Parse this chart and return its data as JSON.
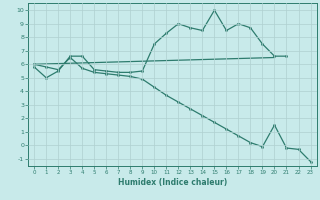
{
  "xlabel": "Humidex (Indice chaleur)",
  "xlim": [
    -0.5,
    23.5
  ],
  "ylim": [
    -1.5,
    10.5
  ],
  "bg_color": "#c8eaea",
  "line_color": "#2e7c6e",
  "grid_color": "#afd0d0",
  "line1_x": [
    0,
    1,
    2,
    3,
    4,
    5,
    6,
    7,
    8,
    9,
    10,
    11,
    12,
    13,
    14,
    15,
    16,
    17,
    18,
    19,
    20,
    21
  ],
  "line1_y": [
    5.8,
    5.0,
    5.5,
    6.6,
    6.6,
    5.6,
    5.5,
    5.4,
    5.4,
    5.5,
    7.5,
    8.3,
    9.0,
    8.7,
    8.5,
    10.0,
    8.5,
    9.0,
    8.7,
    7.5,
    6.6,
    6.6
  ],
  "line2_x": [
    0,
    20
  ],
  "line2_y": [
    6.0,
    6.5
  ],
  "line3_x": [
    0,
    1,
    2,
    3,
    4,
    5,
    6,
    7,
    8,
    9,
    10,
    11,
    12,
    13,
    14,
    15,
    16,
    17,
    18,
    19,
    20,
    21,
    22,
    23
  ],
  "line3_y": [
    6.0,
    5.8,
    5.6,
    6.5,
    5.7,
    5.4,
    5.3,
    5.2,
    5.1,
    4.9,
    4.3,
    3.7,
    3.2,
    2.7,
    2.2,
    1.7,
    1.2,
    0.7,
    0.2,
    -0.1,
    1.5,
    -0.2,
    -0.3,
    -1.2
  ],
  "yticks": [
    -1,
    0,
    1,
    2,
    3,
    4,
    5,
    6,
    7,
    8,
    9,
    10
  ],
  "xticks": [
    0,
    1,
    2,
    3,
    4,
    5,
    6,
    7,
    8,
    9,
    10,
    11,
    12,
    13,
    14,
    15,
    16,
    17,
    18,
    19,
    20,
    21,
    22,
    23
  ]
}
